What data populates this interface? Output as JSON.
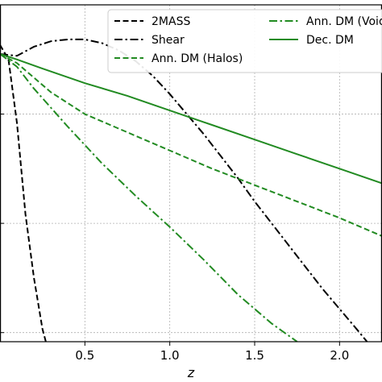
{
  "chart_data": {
    "type": "line",
    "xlabel": "z",
    "ylabel": "",
    "xlim": [
      0.0,
      2.25
    ],
    "ylim": [
      -0.65,
      1.2
    ],
    "x_ticks": [
      0.5,
      1.0,
      1.5,
      2.0
    ],
    "x_tick_labels": [
      "0.5",
      "1.0",
      "1.5",
      "2.0"
    ],
    "y_grid_values": [
      -0.6,
      0.0,
      0.6,
      1.2
    ],
    "grid": true,
    "legend_placement": "top-right",
    "legend_columns": 2,
    "series": [
      {
        "name": "2MASS",
        "color": "#000000",
        "dash": "dashed",
        "x": [
          0.0,
          0.05,
          0.1,
          0.15,
          0.2,
          0.25,
          0.27
        ],
        "y": [
          0.98,
          0.9,
          0.55,
          0.05,
          -0.3,
          -0.58,
          -0.65
        ]
      },
      {
        "name": "Shear",
        "color": "#000000",
        "dash": "dashdot",
        "x": [
          0.0,
          0.1,
          0.2,
          0.3,
          0.4,
          0.5,
          0.6,
          0.7,
          0.8,
          0.9,
          1.0,
          1.1,
          1.2,
          1.3,
          1.4,
          1.5,
          1.6,
          1.7,
          1.8,
          1.9,
          2.0,
          2.1,
          2.25
        ],
        "y": [
          0.93,
          0.92,
          0.97,
          1.0,
          1.01,
          1.01,
          0.99,
          0.95,
          0.89,
          0.81,
          0.71,
          0.6,
          0.49,
          0.37,
          0.25,
          0.12,
          0.0,
          -0.12,
          -0.24,
          -0.36,
          -0.47,
          -0.58,
          -0.75
        ]
      },
      {
        "name": "Ann. DM (Halos)",
        "color": "#228b22",
        "dash": "dashed",
        "x": [
          0.0,
          0.1,
          0.2,
          0.3,
          0.5,
          0.75,
          1.0,
          1.25,
          1.5,
          1.75,
          2.0,
          2.25
        ],
        "y": [
          0.93,
          0.88,
          0.8,
          0.72,
          0.6,
          0.5,
          0.4,
          0.3,
          0.21,
          0.12,
          0.03,
          -0.07
        ]
      },
      {
        "name": "Ann. DM (Void)",
        "color": "#228b22",
        "dash": "dashdot",
        "x": [
          0.0,
          0.1,
          0.2,
          0.4,
          0.6,
          0.8,
          1.0,
          1.2,
          1.4,
          1.6,
          1.75
        ],
        "y": [
          0.93,
          0.86,
          0.74,
          0.53,
          0.33,
          0.15,
          -0.02,
          -0.2,
          -0.39,
          -0.55,
          -0.65
        ]
      },
      {
        "name": "Dec. DM",
        "color": "#228b22",
        "dash": "solid",
        "x": [
          0.0,
          0.1,
          0.25,
          0.5,
          0.75,
          1.0,
          1.25,
          1.5,
          1.75,
          2.0,
          2.25
        ],
        "y": [
          0.93,
          0.9,
          0.85,
          0.77,
          0.7,
          0.62,
          0.54,
          0.46,
          0.38,
          0.3,
          0.22
        ]
      }
    ]
  }
}
